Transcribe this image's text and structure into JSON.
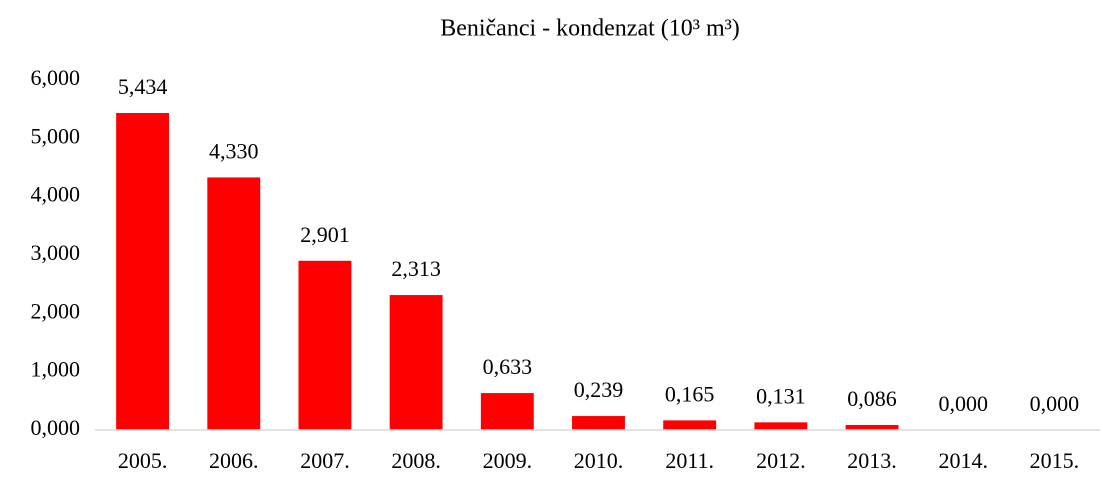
{
  "chart_data": {
    "type": "bar",
    "title": "Beničanci - kondenzat (10³ m³)",
    "categories": [
      "2005.",
      "2006.",
      "2007.",
      "2008.",
      "2009.",
      "2010.",
      "2011.",
      "2012.",
      "2013.",
      "2014.",
      "2015."
    ],
    "values": [
      5.434,
      4.33,
      2.901,
      2.313,
      0.633,
      0.239,
      0.165,
      0.131,
      0.086,
      0,
      0
    ],
    "value_labels": [
      "5,434",
      "4,330",
      "2,901",
      "2,313",
      "0,633",
      "0,239",
      "0,165",
      "0,131",
      "0,086",
      "0,000",
      "0,000"
    ],
    "color": "#ff0000",
    "ylim": [
      0,
      6
    ],
    "yticks": [
      {
        "value": 0,
        "label": "0,000"
      },
      {
        "value": 1,
        "label": "1,000"
      },
      {
        "value": 2,
        "label": "2,000"
      },
      {
        "value": 3,
        "label": "3,000"
      },
      {
        "value": 4,
        "label": "4,000"
      },
      {
        "value": 5,
        "label": "5,000"
      },
      {
        "value": 6,
        "label": "6,000"
      }
    ],
    "grid": false
  }
}
